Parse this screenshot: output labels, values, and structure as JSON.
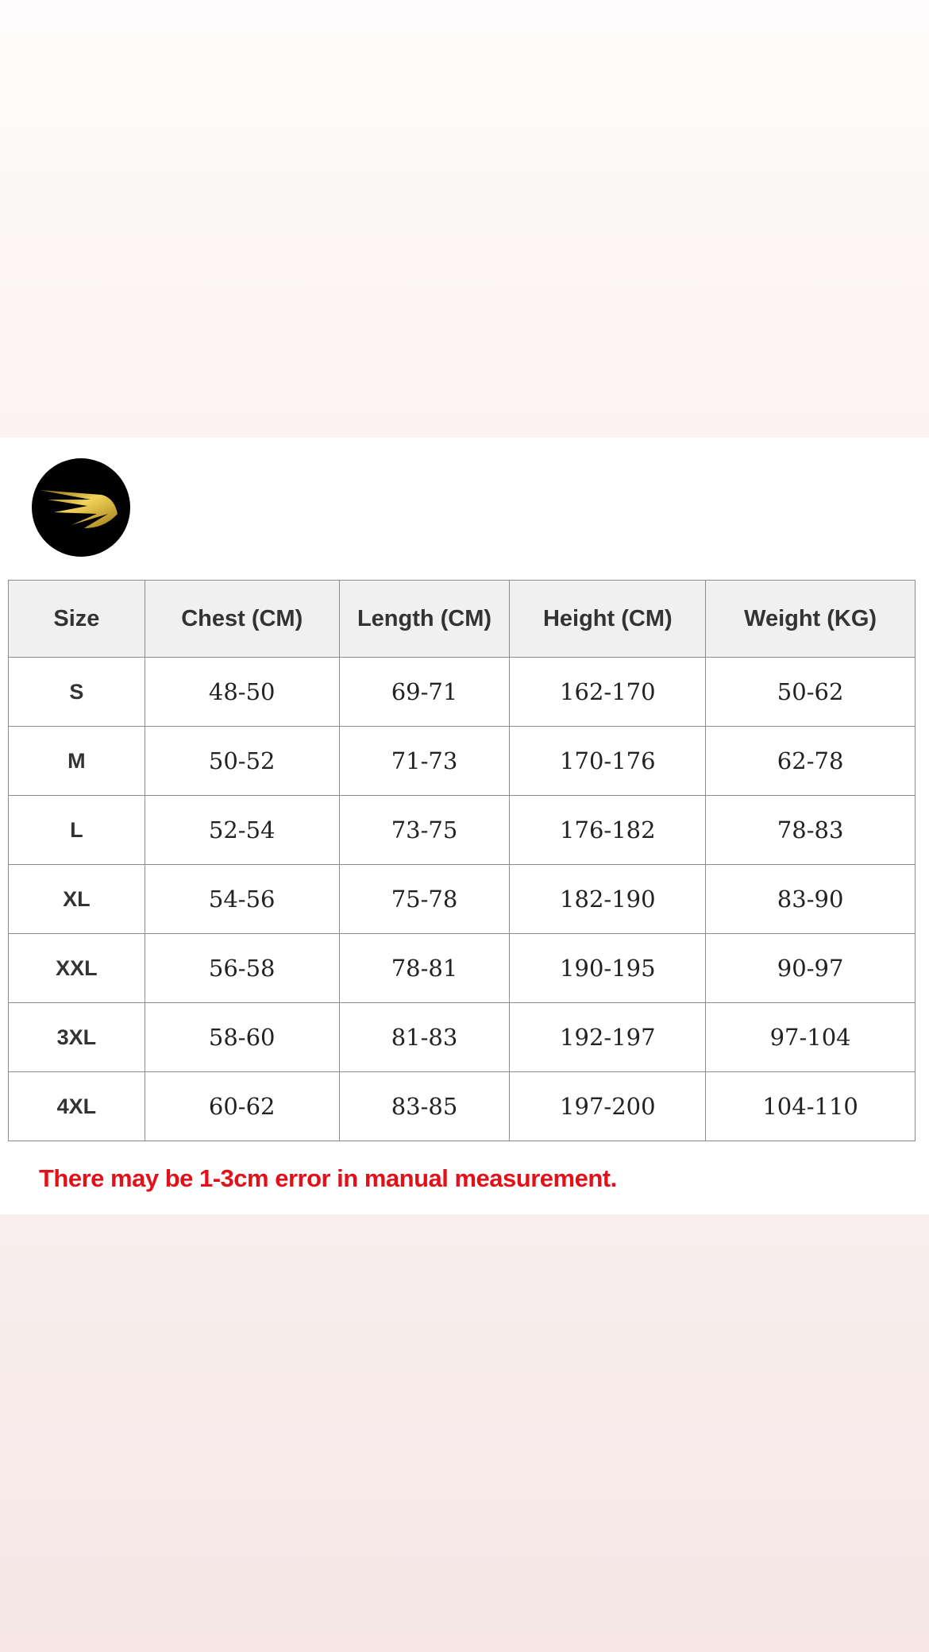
{
  "logo": {
    "icon": "golden-wing-icon",
    "background": "#000000",
    "accent": "#c9a227"
  },
  "table": {
    "headers": [
      "Size",
      "Chest (CM)",
      "Length (CM)",
      "Height (CM)",
      "Weight (KG)"
    ],
    "rows": [
      [
        "S",
        "48-50",
        "69-71",
        "162-170",
        "50-62"
      ],
      [
        "M",
        "50-52",
        "71-73",
        "170-176",
        "62-78"
      ],
      [
        "L",
        "52-54",
        "73-75",
        "176-182",
        "78-83"
      ],
      [
        "XL",
        "54-56",
        "75-78",
        "182-190",
        "83-90"
      ],
      [
        "XXL",
        "56-58",
        "78-81",
        "190-195",
        "90-97"
      ],
      [
        "3XL",
        "58-60",
        "81-83",
        "192-197",
        "97-104"
      ],
      [
        "4XL",
        "60-62",
        "83-85",
        "197-200",
        "104-110"
      ]
    ]
  },
  "note": {
    "text": "There may be 1-3cm error in manual measurement.",
    "color": "#e3101a"
  }
}
